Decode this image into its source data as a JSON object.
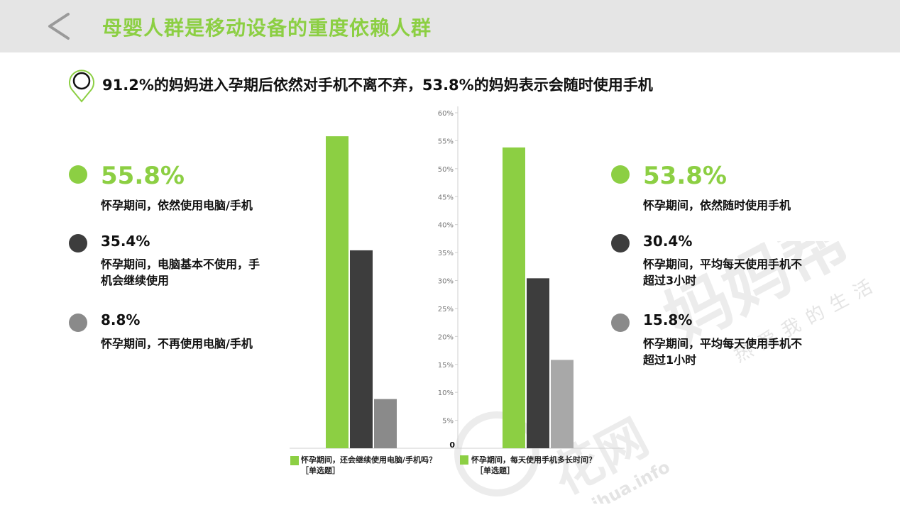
{
  "header": {
    "title": "母婴人群是移动设备的重度依赖人群"
  },
  "subtitle": "91.2%的妈妈进入孕期后依然对手机不离不弃，53.8%的妈妈表示会随时使用手机",
  "colors": {
    "green": "#8ccf43",
    "dark": "#3d3d3d",
    "gray": "#8a8a8a",
    "topbar": "#e5e5e5"
  },
  "left_stats": [
    {
      "value": "55.8%",
      "label": "怀孕期间，依然使用电脑/手机",
      "color": "#8ccf43"
    },
    {
      "value": "35.4%",
      "label_line1": "怀孕期间，电脑基本不使用，手",
      "label_line2": "机会继续使用",
      "color": "#3d3d3d"
    },
    {
      "value": "8.8%",
      "label": "怀孕期间，不再使用电脑/手机",
      "color": "#8a8a8a"
    }
  ],
  "right_stats": [
    {
      "value": "53.8%",
      "label": "怀孕期间，依然随时使用手机",
      "color": "#8ccf43"
    },
    {
      "value": "30.4%",
      "label_line1": "怀孕期间，平均每天使用手机不",
      "label_line2": "超过3小时",
      "color": "#3d3d3d"
    },
    {
      "value": "15.8%",
      "label_line1": "怀孕期间，平均每天使用手机不",
      "label_line2": "超过1小时",
      "color": "#8a8a8a"
    }
  ],
  "legend": {
    "left_line1": "怀孕期间，还会继续使用电脑/手机吗？",
    "left_line2": "［单选题］",
    "right_line1": "怀孕期间，每天使用手机多长时间？",
    "right_line2": "［单选题］"
  },
  "watermark": {
    "brand": "妈妈帮",
    "tagline": "热爱我的生活",
    "site": "花网",
    "url": "ihua.info"
  },
  "chart_data": {
    "type": "bar",
    "ylim": [
      0,
      60
    ],
    "yticks": [
      "60%",
      "55%",
      "50%",
      "45%",
      "40%",
      "35%",
      "30%",
      "25%",
      "20%",
      "15%",
      "10%",
      "5%",
      "0"
    ],
    "grid": false,
    "groups": [
      {
        "name": "怀孕期间，还会继续使用电脑/手机吗？［单选题］",
        "values": [
          55.8,
          35.4,
          8.8
        ],
        "colors": [
          "#8ccf43",
          "#3d3d3d",
          "#8a8a8a"
        ]
      },
      {
        "name": "怀孕期间，每天使用手机多长时间？［单选题］",
        "values": [
          53.8,
          30.4,
          15.8
        ],
        "colors": [
          "#8ccf43",
          "#3d3d3d",
          "#a8a8a8"
        ]
      }
    ]
  }
}
